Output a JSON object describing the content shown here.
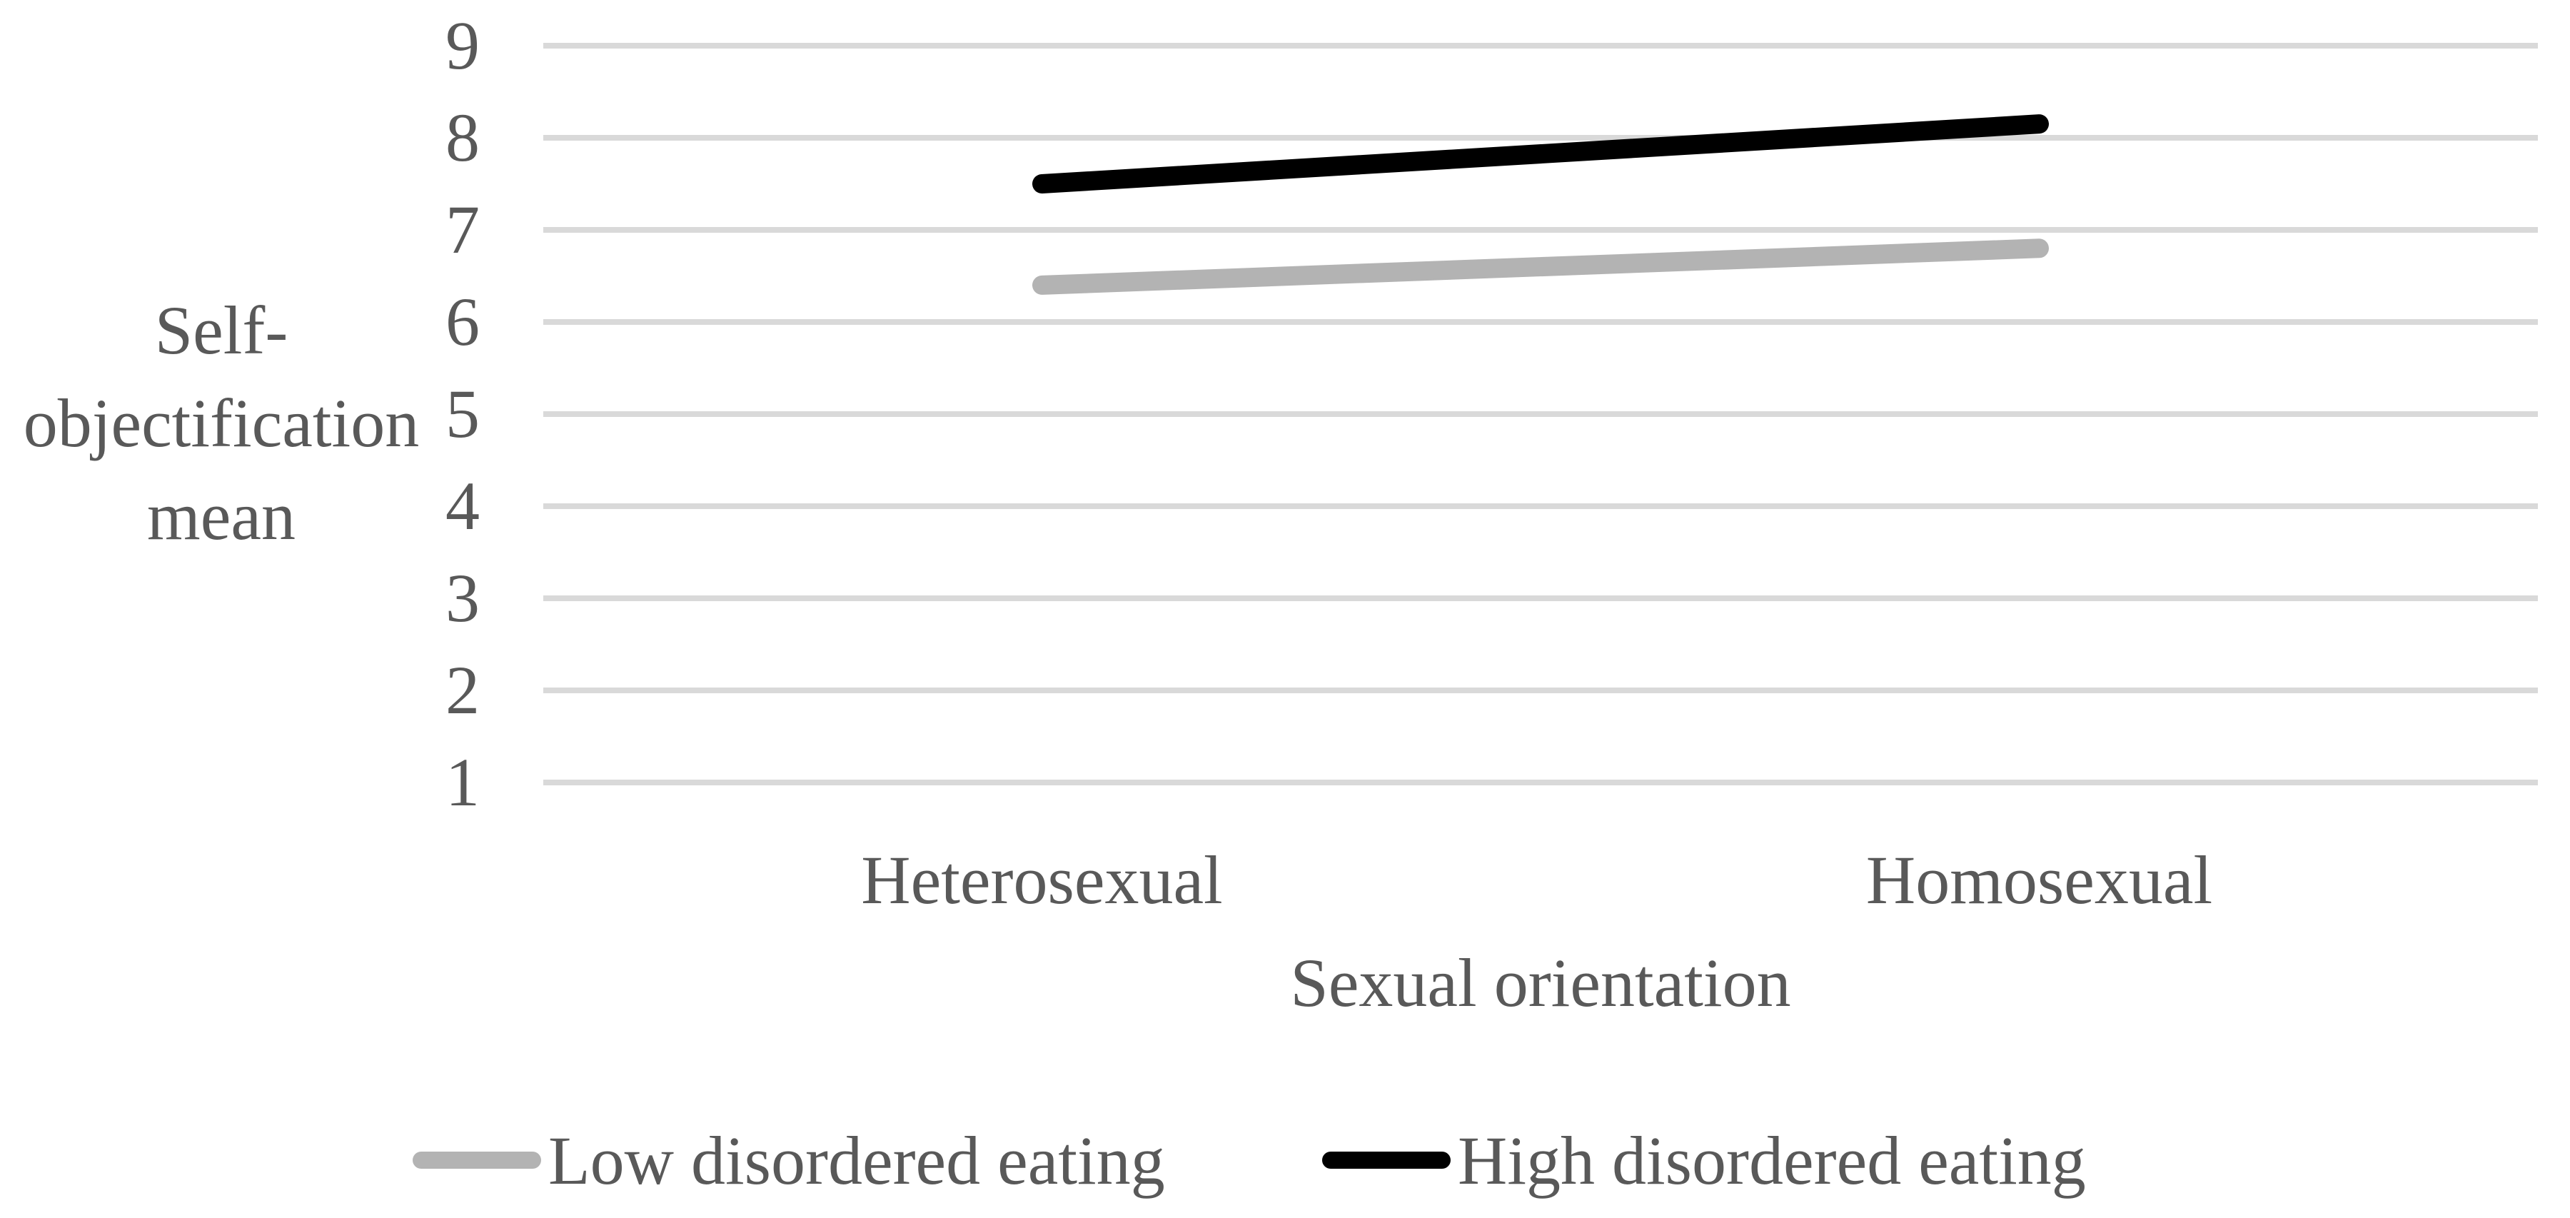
{
  "chart_data": {
    "type": "line",
    "categories": [
      "Heterosexual",
      "Homosexual"
    ],
    "series": [
      {
        "name": "Low disordered eating",
        "values": [
          6.4,
          6.8
        ],
        "color": "#b3b3b3"
      },
      {
        "name": "High disordered eating",
        "values": [
          7.5,
          8.15
        ],
        "color": "#000000"
      }
    ],
    "title": "",
    "xlabel": "Sexual orientation",
    "ylabel": "Self-objectification mean",
    "ylabel_lines": [
      "Self-",
      "objectification",
      "mean"
    ],
    "ylim": [
      1,
      9
    ],
    "yticks": [
      1,
      2,
      3,
      4,
      5,
      6,
      7,
      8,
      9
    ],
    "grid": "horizontal",
    "gridline_color": "#d9d9d9",
    "text_color": "#595959",
    "background_color": "#ffffff",
    "legend_position": "bottom-center"
  }
}
